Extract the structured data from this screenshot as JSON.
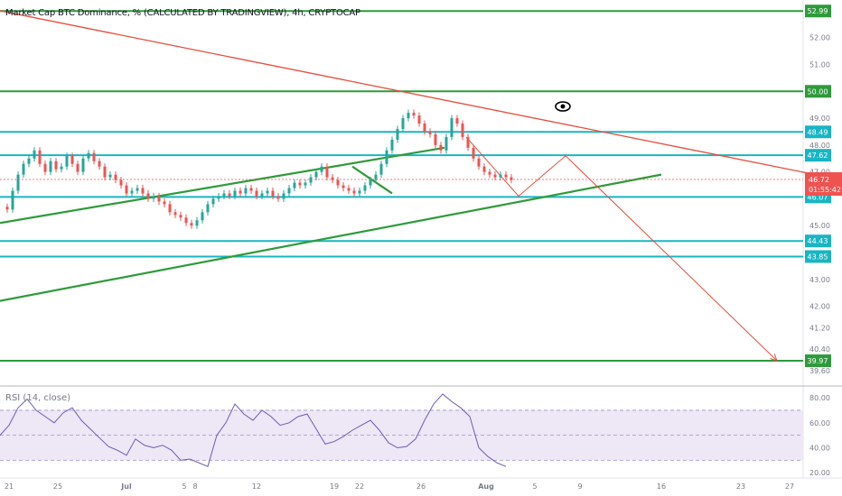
{
  "header": {
    "title": "Market Cap BTC Dominance, % (CALCULATED BY TRADINGVIEW), 4h, CRYPTOCAP"
  },
  "rsi": {
    "title": "RSI (14, close)"
  },
  "colors": {
    "green_line": "#2e9b3a",
    "cyan_line": "#18b5c4",
    "red_line": "#e74c3c",
    "candle_up": "#26a69a",
    "candle_down": "#ef5350",
    "rsi_line": "#6e5bb8",
    "rsi_band": "#ede7f6"
  },
  "chart_data": [
    {
      "type": "line",
      "role": "price",
      "ylim": [
        39.3,
        53.4
      ],
      "price_ticks": [
        "52.00",
        "51.00",
        "49.00",
        "48.00",
        "47.00",
        "45.00",
        "43.00",
        "42.00",
        "41.20",
        "40.40",
        "39.60"
      ],
      "x_ticks": [
        "21",
        "25",
        "Jul",
        "5",
        "8",
        "12",
        "19",
        "22",
        "26",
        "Aug",
        "5",
        "9",
        "16",
        "23",
        "27"
      ],
      "horizontal_levels": [
        {
          "value": "52.99",
          "color": "green"
        },
        {
          "value": "50.00",
          "color": "green"
        },
        {
          "value": "48.49",
          "color": "cyan"
        },
        {
          "value": "47.62",
          "color": "cyan"
        },
        {
          "value": "46.07",
          "color": "cyan"
        },
        {
          "value": "44.43",
          "color": "cyan"
        },
        {
          "value": "43.85",
          "color": "cyan"
        },
        {
          "value": "39.97",
          "color": "green"
        }
      ],
      "current_price": "46.72",
      "countdown": "01:55:42",
      "series": [
        {
          "x": [
            0,
            6,
            12,
            18,
            24,
            30,
            36,
            42,
            48,
            54,
            60,
            66,
            72,
            78,
            84,
            90,
            96,
            102,
            108,
            114,
            120,
            126,
            132,
            138,
            144,
            150,
            156,
            162,
            168,
            174,
            180,
            186,
            192,
            198,
            204,
            210,
            216,
            222,
            228,
            234,
            240,
            246,
            252,
            258,
            264,
            270,
            276,
            282,
            288,
            294,
            300,
            306,
            312,
            318,
            324,
            330,
            336,
            342,
            348,
            354,
            360,
            366,
            372,
            378,
            384,
            390,
            396,
            402,
            408,
            414,
            420,
            426,
            432,
            438,
            444,
            450,
            456,
            462,
            468,
            474,
            480,
            486,
            492,
            498,
            504,
            510,
            516,
            522,
            528,
            534,
            540,
            546,
            552,
            558,
            564
          ],
          "y": [
            45.7,
            45.6,
            46.3,
            46.9,
            47.3,
            47.5,
            47.8,
            47.3,
            47.0,
            47.4,
            47.1,
            47.2,
            47.6,
            47.3,
            47.0,
            47.5,
            47.7,
            47.4,
            47.2,
            46.8,
            46.9,
            46.7,
            46.5,
            46.2,
            46.3,
            46.4,
            46.2,
            46.0,
            46.1,
            45.9,
            45.8,
            45.5,
            45.4,
            45.3,
            45.1,
            45.0,
            45.2,
            45.5,
            45.8,
            46.0,
            46.1,
            46.2,
            46.1,
            46.3,
            46.2,
            46.4,
            46.3,
            46.1,
            46.2,
            46.3,
            46.1,
            46.0,
            46.2,
            46.4,
            46.6,
            46.5,
            46.6,
            46.8,
            47.0,
            47.2,
            46.8,
            46.7,
            46.5,
            46.4,
            46.3,
            46.2,
            46.3,
            46.5,
            46.7,
            46.9,
            47.3,
            47.8,
            48.2,
            48.6,
            49.0,
            49.2,
            49.1,
            48.8,
            48.5,
            48.4,
            48.0,
            47.8,
            48.3,
            49.0,
            48.8,
            48.3,
            47.9,
            47.5,
            47.2,
            47.0,
            46.9,
            46.8,
            46.9,
            46.8,
            46.7
          ]
        }
      ],
      "trendlines": [
        {
          "color": "red",
          "from": [
            0,
            53.0
          ],
          "to": [
            932,
            46.7
          ]
        },
        {
          "color": "green",
          "from": [
            0,
            45.1
          ],
          "to": [
            492,
            47.9
          ]
        },
        {
          "color": "green",
          "from": [
            0,
            42.2
          ],
          "to": [
            732,
            46.9
          ]
        },
        {
          "color": "green",
          "from": [
            390,
            47.2
          ],
          "to": [
            434,
            46.2
          ]
        }
      ],
      "projection": {
        "color": "red",
        "points": [
          [
            516,
            48.3
          ],
          [
            574,
            46.1
          ],
          [
            626,
            47.6
          ],
          [
            860,
            39.97
          ]
        ]
      }
    },
    {
      "type": "line",
      "role": "rsi",
      "title": "RSI (14, close)",
      "ylim": [
        18,
        88
      ],
      "ticks": [
        "80.00",
        "60.00",
        "40.00",
        "20.00"
      ],
      "bands": {
        "upper": 70,
        "lower": 30
      },
      "series": [
        {
          "x": [
            0,
            10,
            20,
            30,
            40,
            50,
            60,
            70,
            80,
            90,
            100,
            110,
            120,
            130,
            140,
            150,
            160,
            170,
            180,
            190,
            200,
            210,
            220,
            230,
            240,
            250,
            260,
            270,
            280,
            290,
            300,
            310,
            320,
            330,
            340,
            350,
            360,
            370,
            380,
            390,
            400,
            410,
            420,
            430,
            440,
            450,
            460,
            470,
            480,
            490,
            500,
            510,
            520,
            530,
            540,
            550,
            560
          ],
          "y": [
            50,
            58,
            72,
            79,
            70,
            65,
            60,
            68,
            72,
            62,
            55,
            48,
            41,
            38,
            34,
            47,
            42,
            40,
            42,
            38,
            30,
            31,
            28,
            25,
            50,
            60,
            75,
            67,
            62,
            70,
            65,
            58,
            60,
            65,
            67,
            55,
            43,
            45,
            49,
            54,
            58,
            62,
            54,
            44,
            40,
            41,
            47,
            62,
            75,
            83,
            77,
            72,
            65,
            40,
            33,
            28,
            25
          ]
        }
      ]
    }
  ]
}
